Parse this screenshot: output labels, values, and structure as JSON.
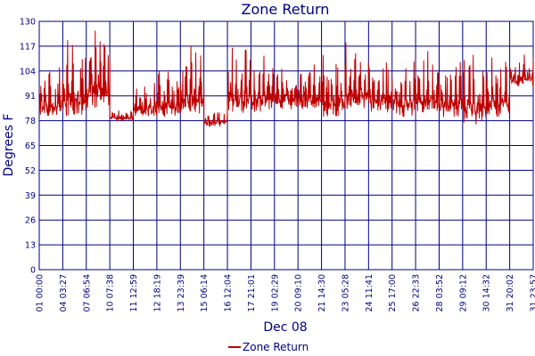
{
  "chart_data": {
    "type": "line",
    "title": "Zone Return",
    "xlabel": "Dec 08",
    "ylabel": "Degrees F",
    "ylim": [
      0,
      130
    ],
    "yticks": [
      0,
      13,
      26,
      39,
      52,
      65,
      78,
      91,
      104,
      117,
      130
    ],
    "xticks": [
      "01 00:00",
      "04 03:27",
      "07 06:54",
      "10 07:38",
      "11 12:59",
      "12 18:19",
      "13 23:39",
      "15 06:14",
      "16 12:04",
      "17 21:01",
      "19 02:29",
      "20 09:10",
      "21 14:30",
      "23 05:28",
      "24 11:41",
      "25 17:00",
      "26 22:33",
      "28 03:52",
      "29 09:12",
      "30 14:32",
      "31 20:02",
      "31 23:57"
    ],
    "grid": true,
    "legend": "bottom-center",
    "colors": {
      "series": "#c00000",
      "axis": "#000080",
      "grid": "#000080"
    },
    "series": [
      {
        "name": "Zone Return",
        "segments": [
          {
            "from": "01 00:00",
            "low": 80,
            "high": 110
          },
          {
            "from": "04 03:27",
            "low": 80,
            "high": 122
          },
          {
            "from": "07 06:54",
            "low": 85,
            "high": 126
          },
          {
            "from": "10 07:38",
            "low": 78,
            "high": 86
          },
          {
            "from": "11 12:59",
            "low": 80,
            "high": 100
          },
          {
            "from": "12 18:19",
            "low": 80,
            "high": 110
          },
          {
            "from": "13 23:39",
            "low": 82,
            "high": 118
          },
          {
            "from": "15 06:14",
            "low": 75,
            "high": 86
          },
          {
            "from": "16 12:04",
            "low": 82,
            "high": 120
          },
          {
            "from": "17 21:01",
            "low": 82,
            "high": 118
          },
          {
            "from": "19 02:29",
            "low": 84,
            "high": 110
          },
          {
            "from": "20 09:10",
            "low": 84,
            "high": 112
          },
          {
            "from": "21 14:30",
            "low": 80,
            "high": 118
          },
          {
            "from": "23 05:28",
            "low": 84,
            "high": 120
          },
          {
            "from": "24 11:41",
            "low": 82,
            "high": 116
          },
          {
            "from": "25 17:00",
            "low": 80,
            "high": 114
          },
          {
            "from": "26 22:33",
            "low": 82,
            "high": 116
          },
          {
            "from": "28 03:52",
            "low": 80,
            "high": 112
          },
          {
            "from": "29 09:12",
            "low": 76,
            "high": 120
          },
          {
            "from": "30 14:32",
            "low": 80,
            "high": 114
          },
          {
            "from": "31 20:02",
            "low": 96,
            "high": 114
          }
        ]
      }
    ]
  }
}
